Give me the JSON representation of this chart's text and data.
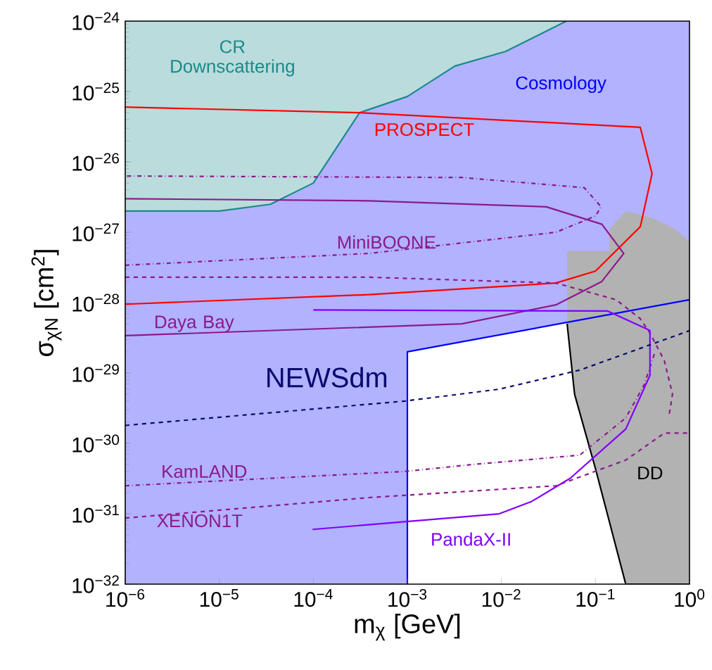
{
  "chart_data": {
    "type": "line",
    "log": "xy",
    "xlabel": "m$_{χ}$ [GeV]",
    "ylabel": "σ$_{χN}$ [cm$^{2}$]",
    "xlim": [
      1e-06,
      1
    ],
    "ylim": [
      1e-32,
      1e-24
    ],
    "xticks": [
      {
        "value": 1e-06,
        "label": "10$^{−6}$"
      },
      {
        "value": 1e-05,
        "label": "10$^{−5}$"
      },
      {
        "value": 0.0001,
        "label": "10$^{−4}$"
      },
      {
        "value": 0.001,
        "label": "10$^{−3}$"
      },
      {
        "value": 0.01,
        "label": "10$^{−2}$"
      },
      {
        "value": 0.1,
        "label": "10$^{−1}$"
      },
      {
        "value": 1,
        "label": "10$^{0}$"
      }
    ],
    "yticks": [
      {
        "value": 1e-32,
        "label": "10$^{−32}$"
      },
      {
        "value": 1e-31,
        "label": "10$^{−31}$"
      },
      {
        "value": 1e-30,
        "label": "10$^{−30}$"
      },
      {
        "value": 1e-29,
        "label": "10$^{−29}$"
      },
      {
        "value": 1e-28,
        "label": "10$^{−28}$"
      },
      {
        "value": 1e-27,
        "label": "10$^{−27}$"
      },
      {
        "value": 1e-26,
        "label": "10$^{−26}$"
      },
      {
        "value": 1e-25,
        "label": "10$^{−25}$"
      },
      {
        "value": 1e-24,
        "label": "10$^{−24}$"
      }
    ],
    "series": [
      {
        "type": "line",
        "name": "Cosmology",
        "color": "#0000ff",
        "line_style": "solid",
        "x": [
          1e-06,
          0.001,
          0.001,
          1
        ],
        "values": [
          null,
          1e-32,
          2e-29,
          1.1e-28
        ],
        "lower": [
          1e-32,
          1e-32,
          2e-29,
          1.1e-28
        ],
        "upper": [
          1e-24,
          1e-24,
          1e-24,
          1e-24
        ]
      },
      {
        "type": "line",
        "name": "CR Downscattering",
        "color": "#1a8a8a",
        "line_style": "solid",
        "x": [
          1e-06,
          1e-05,
          3.5e-05,
          0.0001,
          0.00031,
          0.001,
          0.0032,
          0.011,
          0.049
        ],
        "values": [
          2e-27,
          2e-27,
          2.5e-27,
          5e-27,
          5e-26,
          8.5e-26,
          2.3e-25,
          3.7e-25,
          1e-24
        ],
        "lower": [
          2e-27,
          2e-27,
          2.5e-27,
          5e-27,
          5e-26,
          8.5e-26,
          2.3e-25,
          3.7e-25,
          1e-24
        ],
        "upper": [
          1e-24,
          1e-24,
          1e-24,
          1e-24,
          1e-24,
          1e-24,
          1e-24,
          1e-24,
          1e-24
        ]
      },
      {
        "type": "line",
        "name": "DD",
        "color": "#000000",
        "line_style": "solid",
        "x": [
          0.05,
          0.06,
          0.1,
          0.14,
          0.14,
          0.21,
          0.4,
          0.71,
          1
        ],
        "values": [
          5e-29,
          5e-30,
          4.4e-31,
          7.9e-32,
          7.9e-32,
          1e-32,
          1e-32,
          1e-32,
          1e-32
        ],
        "lower": [
          5e-29,
          5e-30,
          4.4e-31,
          7.9e-32,
          7.9e-32,
          1e-32,
          1e-32,
          1e-32,
          1e-32
        ],
        "upper": [
          5.4e-28,
          5.4e-28,
          5.4e-28,
          5.4e-28,
          1.1e-27,
          2e-27,
          1.6e-27,
          1.1e-27,
          7.4e-28
        ]
      },
      {
        "name": "PROSPECT",
        "color": "#ff0000",
        "line_style": "solid",
        "x": [
          1e-06,
          0.00031,
          0.3,
          0.4,
          0.3,
          0.1,
          0.038,
          0.00039,
          1e-06
        ],
        "values": [
          6e-26,
          5e-26,
          3.1e-26,
          6.8e-27,
          1.2e-27,
          2.8e-28,
          1.9e-28,
          1.3e-28,
          9.5e-29
        ]
      },
      {
        "name": "MiniBOONE",
        "color": "#8b1a8b",
        "line_style": "dashdot",
        "x": [
          1e-06,
          0.00039,
          0.038,
          0.1,
          0.115,
          0.076,
          0.0038,
          1e-06
        ],
        "values": [
          3.4e-28,
          5e-28,
          1e-27,
          1.7e-27,
          2.3e-27,
          4.3e-27,
          6e-27,
          6.3e-27
        ]
      },
      {
        "name": "Daya Bay",
        "color": "#8b1a8b",
        "line_style": "solid",
        "x": [
          1e-06,
          0.00039,
          0.03,
          0.117,
          0.2,
          0.117,
          0.038,
          0.0038,
          1e-06
        ],
        "values": [
          3e-27,
          2.8e-27,
          2.3e-27,
          1.3e-27,
          5e-28,
          2e-28,
          9.3e-29,
          5e-29,
          3.4e-29
        ]
      },
      {
        "color": "#8b1a8b",
        "line_style": "dashed",
        "x": [
          1e-06,
          0.00039,
          0.038,
          0.166,
          0.3,
          0.38,
          0.54,
          0.66,
          0.6
        ],
        "values": [
          2.3e-28,
          2.3e-28,
          1.9e-28,
          1.1e-28,
          5.9e-29,
          3.7e-29,
          1.5e-29,
          5e-30,
          2.3e-30
        ]
      },
      {
        "name": "KamLAND",
        "color": "#8b1a8b",
        "line_style": "dashdot",
        "x": [
          1e-06,
          0.00095,
          0.0048,
          0.068,
          0.21,
          0.33,
          0.43
        ],
        "values": [
          2.5e-31,
          4e-31,
          5e-31,
          6.8e-31,
          2.3e-30,
          6.8e-30,
          2e-29
        ]
      },
      {
        "name": "XENON1T",
        "color": "#8b1a8b",
        "line_style": "dashed",
        "x": [
          1e-06,
          0.00039,
          0.038,
          0.21,
          0.54,
          1
        ],
        "values": [
          8.7e-32,
          1.7e-31,
          2.5e-31,
          5.8e-31,
          1.4e-30,
          1.4e-30
        ]
      },
      {
        "name": "PandaX-II",
        "color": "#8000ff",
        "line_style": "solid",
        "x": [
          0.0001,
          0.135,
          0.33,
          0.38,
          0.38,
          0.21,
          0.054,
          0.021,
          0.0095,
          9.8e-05
        ],
        "values": [
          7.9e-29,
          7.6e-29,
          4.4e-29,
          4e-29,
          9.3e-30,
          1.6e-30,
          3.2e-31,
          1.5e-31,
          1e-31,
          6e-32
        ]
      },
      {
        "name": "NEWSdm",
        "color": "#0a0a6e",
        "line_style": "dashed",
        "x": [
          1e-06,
          0.00095,
          0.0095,
          0.068,
          1
        ],
        "values": [
          1.8e-30,
          4e-30,
          5.9e-30,
          1.1e-29,
          4e-29
        ]
      }
    ]
  }
}
